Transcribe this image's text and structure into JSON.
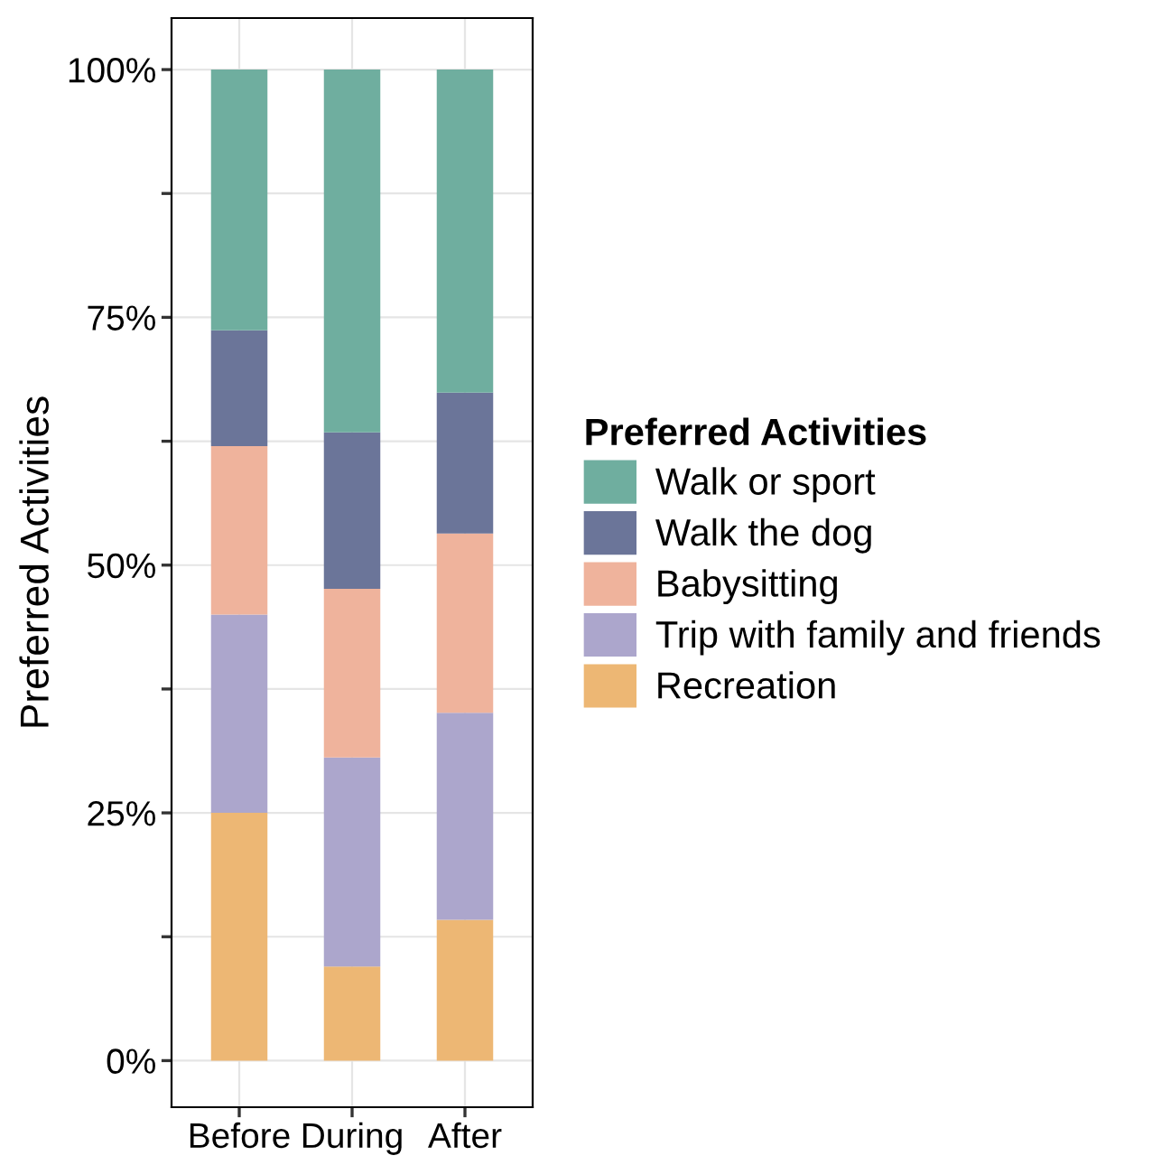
{
  "chart_data": {
    "type": "bar",
    "stacked": true,
    "ylabel": "Preferred Activities",
    "legend_title": "Preferred Activities",
    "categories": [
      "Before",
      "During",
      "After"
    ],
    "series": [
      {
        "name": "Recreation",
        "color": "#edb774",
        "values": [
          25,
          9.5,
          14.2
        ]
      },
      {
        "name": "Trip with family and friends",
        "color": "#aca6cc",
        "values": [
          20,
          21.1,
          20.9
        ]
      },
      {
        "name": "Babysitting",
        "color": "#efb39c",
        "values": [
          17,
          17,
          18.1
        ]
      },
      {
        "name": "Walk the dog",
        "color": "#6b7599",
        "values": [
          11.7,
          15.8,
          14.2
        ]
      },
      {
        "name": "Walk or sport",
        "color": "#6fae9f",
        "values": [
          26.3,
          36.6,
          32.6
        ]
      }
    ],
    "ylim": [
      -4.7,
      105.2
    ],
    "yticks": [
      {
        "value": 0,
        "label": "0%"
      },
      {
        "value": 12.5,
        "label": null
      },
      {
        "value": 25,
        "label": "25%"
      },
      {
        "value": 37.5,
        "label": null
      },
      {
        "value": 50,
        "label": "50%"
      },
      {
        "value": 62.5,
        "label": null
      },
      {
        "value": 75,
        "label": "75%"
      },
      {
        "value": 87.5,
        "label": null
      },
      {
        "value": 100,
        "label": "100%"
      }
    ],
    "grid": true,
    "legend": "right"
  }
}
